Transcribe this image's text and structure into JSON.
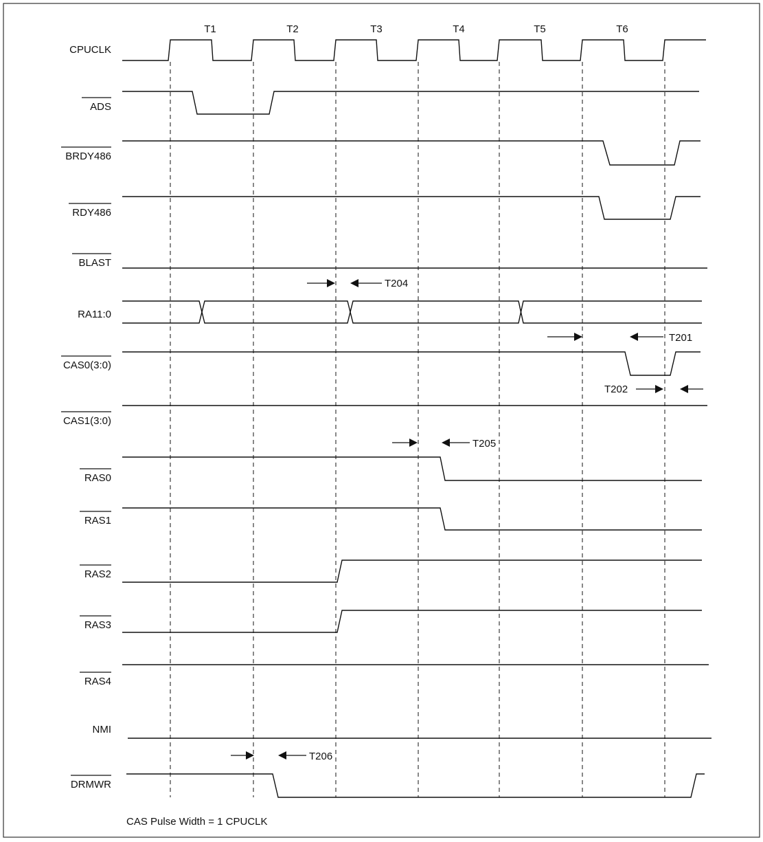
{
  "diagram": {
    "cycles": [
      "T1",
      "T2",
      "T3",
      "T4",
      "T5",
      "T6"
    ],
    "signals": [
      {
        "id": "cpuclk",
        "label": "CPUCLK",
        "active_low": false
      },
      {
        "id": "ads",
        "label": "ADS",
        "active_low": true
      },
      {
        "id": "brdy486",
        "label": "BRDY486",
        "active_low": true
      },
      {
        "id": "rdy486",
        "label": "RDY486",
        "active_low": true
      },
      {
        "id": "blast",
        "label": "BLAST",
        "active_low": true
      },
      {
        "id": "ra11",
        "label": "RA11:0",
        "active_low": false
      },
      {
        "id": "cas0",
        "label": "CAS0(3:0)",
        "active_low": true
      },
      {
        "id": "cas1",
        "label": "CAS1(3:0)",
        "active_low": true
      },
      {
        "id": "ras0",
        "label": "RAS0",
        "active_low": true
      },
      {
        "id": "ras1",
        "label": "RAS1",
        "active_low": true
      },
      {
        "id": "ras2",
        "label": "RAS2",
        "active_low": true
      },
      {
        "id": "ras3",
        "label": "RAS3",
        "active_low": true
      },
      {
        "id": "ras4",
        "label": "RAS4",
        "active_low": true
      },
      {
        "id": "nmi",
        "label": "NMI",
        "active_low": false
      },
      {
        "id": "drmwr",
        "label": "DRMWR",
        "active_low": true
      }
    ],
    "timing_params": {
      "t204": "T204",
      "t201": "T201",
      "t202": "T202",
      "t205": "T205",
      "t206": "T206"
    },
    "footnote": "CAS Pulse Width = 1 CPUCLK"
  }
}
